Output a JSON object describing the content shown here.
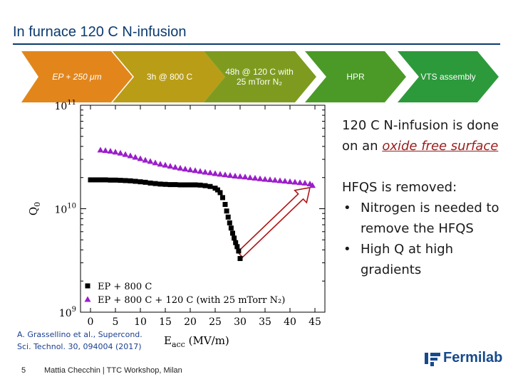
{
  "slide": {
    "title": "In furnace 120 C N-infusion",
    "page_number": "5",
    "footer": "Mattia Checchin | TTC Workshop, Milan",
    "logo_text": "Fermilab"
  },
  "process_steps": [
    {
      "label": "EP + 250 μm",
      "color": "#e2861c"
    },
    {
      "label": "3h @ 800 C",
      "color": "#b99d16"
    },
    {
      "label": "48h @ 120 C with 25 mTorr N₂",
      "color": "#7e9b20"
    },
    {
      "label": "HPR",
      "color": "#4b9a28"
    },
    {
      "label": "VTS assembly",
      "color": "#2c9a3b"
    }
  ],
  "text": {
    "p1_before": "120 C N-infusion is done on an ",
    "p1_emph": "oxide free surface",
    "p2": "HFQS is removed:",
    "bullets": [
      "Nitrogen is needed to remove the HFQS",
      "High Q at high gradients"
    ]
  },
  "citation": "A. Grassellino et al., Supercond. Sci. Technol. 30, 094004 (2017)",
  "chart_data": {
    "type": "scatter",
    "xlabel": "Eacc (MV/m)",
    "ylabel": "Q0",
    "xlim": [
      -2,
      47
    ],
    "ylim": [
      1000000000,
      100000000000
    ],
    "yscale": "log",
    "xticks": [
      0,
      5,
      10,
      15,
      20,
      25,
      30,
      35,
      40,
      45
    ],
    "ytick_labels": [
      "10^9",
      "10^10",
      "10^11"
    ],
    "legend_position": "bottom-left",
    "series": [
      {
        "name": "EP + 800 C",
        "marker": "square",
        "color": "#000000",
        "x": [
          0,
          1,
          2,
          3,
          4,
          5,
          6,
          7,
          8,
          9,
          10,
          11,
          12,
          13,
          14,
          15,
          16,
          17,
          18,
          19,
          20,
          21,
          22,
          23,
          24,
          25,
          25.5,
          26,
          26.5,
          27,
          27.3,
          27.6,
          27.9,
          28.2,
          28.5,
          28.8,
          29.1,
          29.4,
          29.7,
          30
        ],
        "y": [
          19000000000,
          19000000000,
          19000000000,
          19000000000,
          18900000000,
          18900000000,
          18800000000,
          18700000000,
          18600000000,
          18400000000,
          18200000000,
          18000000000,
          17700000000,
          17500000000,
          17300000000,
          17200000000,
          17100000000,
          17100000000,
          17000000000,
          17000000000,
          17000000000,
          17000000000,
          16900000000,
          16700000000,
          16400000000,
          15800000000,
          15200000000,
          14300000000,
          12800000000,
          11000000000,
          9500000000,
          8300000000,
          7300000000,
          6500000000,
          5800000000,
          5200000000,
          4700000000,
          4300000000,
          3900000000,
          3300000000
        ]
      },
      {
        "name": "EP + 800 C + 120 C (with 25 mTorr N₂)",
        "marker": "triangle",
        "color": "#9b1ec9",
        "x": [
          2,
          3,
          4,
          5,
          6,
          7,
          8,
          9,
          10,
          11,
          12,
          13,
          14,
          15,
          16,
          17,
          18,
          19,
          20,
          21,
          22,
          23,
          24,
          25,
          26,
          27,
          28,
          29,
          30,
          31,
          32,
          33,
          34,
          35,
          36,
          37,
          38,
          39,
          40,
          41,
          42,
          43,
          44,
          44.5
        ],
        "y": [
          37000000000,
          36500000000,
          36000000000,
          35300000000,
          34500000000,
          33500000000,
          32500000000,
          31500000000,
          30500000000,
          29500000000,
          28700000000,
          27800000000,
          27000000000,
          26400000000,
          25800000000,
          25200000000,
          24700000000,
          24200000000,
          23800000000,
          23400000000,
          23000000000,
          22600000000,
          22300000000,
          21900000000,
          21600000000,
          21300000000,
          21000000000,
          20700000000,
          20500000000,
          20300000000,
          20000000000,
          19800000000,
          19500000000,
          19300000000,
          19100000000,
          18900000000,
          18700000000,
          18500000000,
          18300000000,
          18100000000,
          17900000000,
          17700000000,
          17400000000,
          16800000000
        ]
      }
    ],
    "annotation": {
      "type": "arrow",
      "from": [
        30,
        3600000000
      ],
      "to": [
        44,
        16000000000
      ],
      "color": "#b01515"
    }
  }
}
